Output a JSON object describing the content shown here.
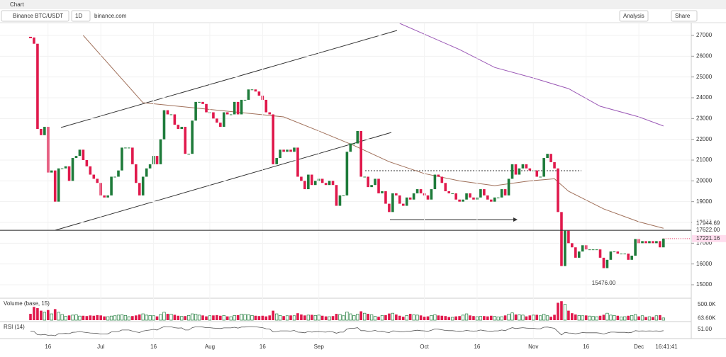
{
  "ui": {
    "tab": "Chart",
    "symbol": "Binance BTC/USDT",
    "interval": "1D",
    "source": "binance.com",
    "analysis": "Analysis",
    "share": "Share",
    "clock": "16:41:41"
  },
  "chart_data": {
    "type": "candlestick",
    "close": [
      26900,
      26600,
      22500,
      22200,
      22600,
      20400,
      20500,
      19000,
      20600,
      20600,
      20700,
      20000,
      21100,
      21200,
      21500,
      21000,
      20700,
      20300,
      20100,
      19900,
      19300,
      19200,
      19300,
      20200,
      20200,
      20500,
      21600,
      21600,
      21600,
      20800,
      19900,
      19300,
      20200,
      20600,
      20800,
      21200,
      20800,
      22000,
      23400,
      23200,
      23200,
      22700,
      22500,
      22600,
      21300,
      21300,
      22900,
      23800,
      23800,
      23700,
      23300,
      23300,
      23000,
      22800,
      22600,
      23300,
      23200,
      23200,
      23800,
      23200,
      23900,
      23900,
      24400,
      24400,
      24300,
      24100,
      23900,
      23300,
      23200,
      20800,
      21100,
      21500,
      21400,
      21500,
      21400,
      21600,
      20200,
      20000,
      19600,
      20300,
      19800,
      20000,
      20100,
      19900,
      19800,
      20000,
      19800,
      18800,
      19300,
      19300,
      21400,
      21800,
      21800,
      22400,
      20200,
      20200,
      19700,
      19800,
      20100,
      19400,
      19500,
      18900,
      18500,
      19400,
      19300,
      18900,
      18800,
      19200,
      19100,
      19400,
      19600,
      19400,
      19300,
      19100,
      19600,
      20300,
      20200,
      19900,
      19500,
      19400,
      19400,
      19100,
      19000,
      19100,
      19400,
      19200,
      19100,
      19200,
      19600,
      19300,
      19100,
      19000,
      19200,
      19200,
      19600,
      19300,
      20100,
      20800,
      20300,
      20600,
      20800,
      20600,
      20500,
      20500,
      20200,
      20200,
      21100,
      21300,
      20900,
      20600,
      18500,
      15900,
      17600,
      17000,
      16800,
      16300,
      16600,
      16900,
      16700,
      16700,
      16700,
      16700,
      16300,
      15800,
      16200,
      16600,
      16600,
      16500,
      16500,
      16500,
      16200,
      16400,
      17200,
      17000,
      17100,
      17000,
      17100,
      17000,
      17100,
      16800,
      17221.16
    ],
    "ylim": [
      15000,
      27000
    ],
    "yticks": [
      15000,
      16000,
      17000,
      18000,
      19000,
      20000,
      21000,
      22000,
      23000,
      24000,
      25000,
      26000,
      27000
    ],
    "xticks": [
      {
        "value": 5,
        "label": "16"
      },
      {
        "value": 20,
        "label": "Jul"
      },
      {
        "value": 35,
        "label": "16"
      },
      {
        "value": 51,
        "label": "Aug"
      },
      {
        "value": 66,
        "label": "16"
      },
      {
        "value": 82,
        "label": "Sep"
      },
      {
        "value": 112,
        "label": "Oct"
      },
      {
        "value": 127,
        "label": "16"
      },
      {
        "value": 143,
        "label": "Nov"
      },
      {
        "value": 158,
        "label": "16"
      },
      {
        "value": 173,
        "label": "Dec"
      }
    ],
    "ma": [
      {
        "color": "#a0705a",
        "x": [
          15,
          32,
          52,
          72,
          82,
          92,
          102,
          112,
          122,
          132,
          142,
          149,
          153,
          163,
          173,
          180
        ],
        "values": [
          27000,
          23760,
          23420,
          23080,
          22400,
          21700,
          20920,
          20350,
          20000,
          19770,
          20000,
          20100,
          19500,
          18650,
          18030,
          17720
        ]
      },
      {
        "color": "#9b59b6",
        "x": [
          105,
          122,
          132,
          143,
          153,
          162,
          173,
          180
        ],
        "values": [
          27580,
          26320,
          25460,
          24950,
          24440,
          23590,
          23080,
          22640
        ]
      }
    ],
    "price_tags": [
      {
        "value": 17944.69,
        "label": "17944.69"
      },
      {
        "value": 17622,
        "label": "17622.00"
      },
      {
        "value": 17221.16,
        "label": "17221.16"
      }
    ],
    "low_note": {
      "value": 15476,
      "label": "15476.00",
      "index": 163
    },
    "volume_title": "Volume (base, 15)",
    "volume": [
      200,
      420,
      380,
      300,
      250,
      320,
      200,
      350,
      250,
      180,
      120,
      150,
      160,
      170,
      130,
      140,
      130,
      150,
      140,
      160,
      150,
      120,
      110,
      130,
      140,
      160,
      170,
      150,
      110,
      130,
      150,
      180,
      200,
      160,
      150,
      140,
      120,
      180,
      250,
      200,
      190,
      170,
      140,
      120,
      130,
      150,
      200,
      190,
      160,
      150,
      120,
      140,
      150,
      160,
      140,
      150,
      120,
      110,
      150,
      160,
      190,
      180,
      170,
      150,
      140,
      130,
      140,
      120,
      150,
      300,
      200,
      150,
      130,
      140,
      150,
      140,
      220,
      180,
      150,
      160,
      170,
      150,
      160,
      140,
      120,
      110,
      130,
      200,
      180,
      140,
      260,
      200,
      150,
      190,
      280,
      220,
      200,
      170,
      120,
      110,
      150,
      160,
      210,
      220,
      180,
      140,
      110,
      150,
      200,
      170,
      160,
      150,
      110,
      120,
      150,
      170,
      150,
      140,
      130,
      100,
      90,
      120,
      130,
      160,
      200,
      150,
      130,
      110,
      120,
      130,
      120,
      140,
      120,
      100,
      110,
      150,
      190,
      230,
      180,
      170,
      160,
      120,
      150,
      160,
      170,
      140,
      190,
      140,
      110,
      170,
      550,
      600,
      500,
      300,
      220,
      180,
      150,
      140,
      150,
      130,
      120,
      110,
      140,
      170,
      220,
      160,
      150,
      140,
      100,
      110,
      140,
      150,
      180,
      120,
      140,
      100,
      110,
      100,
      140,
      160,
      70
    ],
    "volume_ylim": [
      0,
      560
    ],
    "volume_ticks": [
      {
        "value": 500,
        "label": "500.0K"
      },
      {
        "value": 63.6,
        "label": "63.60K"
      }
    ],
    "rsi_title": "RSI (14)",
    "rsi": [
      42,
      40,
      25,
      24,
      26,
      22,
      23,
      20,
      30,
      30,
      31,
      30,
      36,
      37,
      40,
      37,
      35,
      33,
      32,
      31,
      28,
      28,
      29,
      38,
      38,
      40,
      47,
      47,
      47,
      42,
      38,
      35,
      42,
      45,
      47,
      50,
      47,
      56,
      63,
      62,
      62,
      58,
      56,
      57,
      47,
      47,
      58,
      62,
      62,
      61,
      58,
      58,
      56,
      55,
      54,
      57,
      57,
      57,
      60,
      56,
      61,
      61,
      63,
      63,
      62,
      60,
      58,
      53,
      52,
      38,
      40,
      43,
      43,
      43,
      42,
      45,
      37,
      36,
      34,
      40,
      37,
      39,
      40,
      38,
      37,
      40,
      38,
      32,
      37,
      37,
      52,
      55,
      55,
      58,
      44,
      44,
      41,
      42,
      45,
      40,
      41,
      37,
      35,
      43,
      42,
      39,
      38,
      42,
      41,
      44,
      46,
      44,
      43,
      41,
      46,
      52,
      51,
      48,
      45,
      44,
      44,
      42,
      41,
      42,
      45,
      43,
      42,
      43,
      47,
      44,
      42,
      41,
      43,
      43,
      47,
      44,
      52,
      58,
      54,
      56,
      58,
      56,
      55,
      55,
      53,
      53,
      60,
      61,
      58,
      55,
      39,
      24,
      36,
      33,
      32,
      29,
      32,
      35,
      34,
      34,
      34,
      34,
      32,
      28,
      33,
      37,
      37,
      36,
      36,
      36,
      34,
      36,
      44,
      42,
      43,
      42,
      43,
      42,
      43,
      41,
      44
    ],
    "rsi_ylim": [
      20,
      80
    ],
    "rsi_ticks": [
      {
        "value": 51,
        "label": "51.00"
      }
    ],
    "up_color": "#1e7b3a",
    "down_color": "#e0194c"
  }
}
